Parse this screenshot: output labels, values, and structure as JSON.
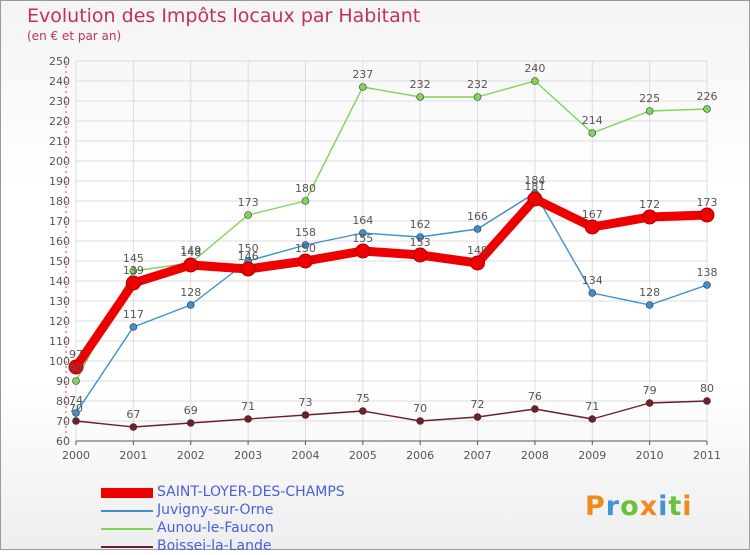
{
  "header": {
    "title": "Evolution des Impôts locaux par Habitant",
    "subtitle": "(en € et par an)"
  },
  "colors": {
    "title": "#c0315f",
    "axis": "#555555",
    "grid": "#dddddd",
    "label": "#555555"
  },
  "logo": {
    "letters": [
      "P",
      "r",
      "o",
      "x",
      "i",
      "t",
      "i"
    ],
    "colors": [
      "#f08a1c",
      "#3f93d6",
      "#69c23a",
      "#f08a1c",
      "#3f93d6",
      "#69c23a",
      "#f08a1c"
    ]
  },
  "chart_data": {
    "type": "line",
    "title": "Evolution des Impôts locaux par Habitant",
    "subtitle": "(en € et par an)",
    "x": [
      "2000",
      "2001",
      "2002",
      "2003",
      "2004",
      "2005",
      "2006",
      "2007",
      "2008",
      "2009",
      "2010",
      "2011"
    ],
    "ylim": [
      60,
      250
    ],
    "ytick_step": 10,
    "grid": true,
    "legend_position": "bottom-left",
    "series": [
      {
        "name": "SAINT-LOYER-DES-CHAMPS",
        "color": "#ee0000",
        "values": [
          97,
          139,
          148,
          146,
          150,
          155,
          153,
          149,
          181,
          167,
          172,
          173
        ]
      },
      {
        "name": "Juvigny-sur-Orne",
        "color": "#3e8fd0",
        "values": [
          74,
          117,
          128,
          150,
          158,
          164,
          162,
          166,
          184,
          134,
          128,
          138
        ]
      },
      {
        "name": "Aunou-le-Faucon",
        "color": "#80d45a",
        "values": [
          90,
          145,
          149,
          173,
          180,
          237,
          232,
          232,
          240,
          214,
          225,
          226
        ]
      },
      {
        "name": "Boissei-la-Lande",
        "color": "#6e1f2a",
        "values": [
          70,
          67,
          69,
          71,
          73,
          75,
          70,
          72,
          76,
          71,
          79,
          80
        ]
      }
    ]
  }
}
